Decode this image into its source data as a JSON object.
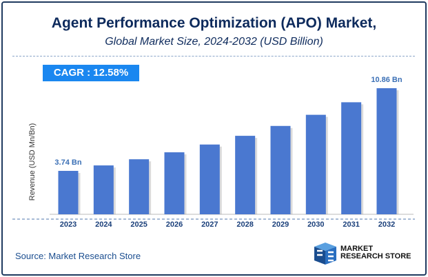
{
  "title": "Agent Performance Optimization (APO) Market,",
  "subtitle": "Global Market Size, 2024-2032 (USD Billion)",
  "cagr_label": "CAGR :  12.58%",
  "source": "Source: Market Research Store",
  "logo": {
    "line1": "MARKET",
    "line2": "RESEARCH STORE"
  },
  "colors": {
    "bar": "#4a78d0",
    "title": "#0d2a5c",
    "cagr_bg": "#1a87f0",
    "label": "#3a6fb5"
  },
  "chart_data": {
    "type": "bar",
    "title": "Agent Performance Optimization (APO) Market,",
    "subtitle": "Global Market Size, 2024-2032 (USD Billion)",
    "ylabel": "Revenue (USD Mn/Bn)",
    "xlabel": "",
    "categories": [
      "2023",
      "2024",
      "2025",
      "2026",
      "2027",
      "2028",
      "2029",
      "2030",
      "2031",
      "2032"
    ],
    "values": [
      3.74,
      4.21,
      4.74,
      5.34,
      6.01,
      6.76,
      7.61,
      8.57,
      9.65,
      10.86
    ],
    "data_labels": [
      {
        "index": 0,
        "text": "3.74 Bn"
      },
      {
        "index": 9,
        "text": "10.86 Bn"
      }
    ],
    "ylim": [
      0,
      11
    ],
    "grid": false
  }
}
